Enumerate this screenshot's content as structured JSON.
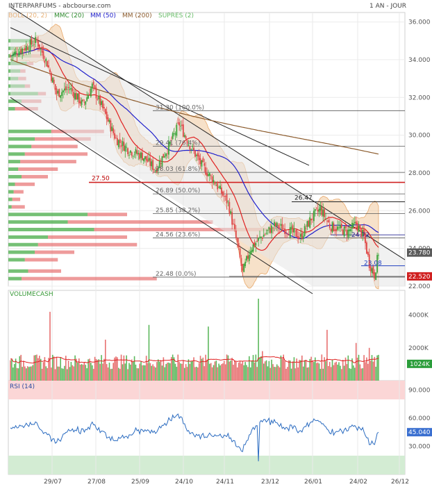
{
  "header": {
    "title": "INTERPARFUMS - abcbourse.com",
    "period": "1 AN - JOUR"
  },
  "legend": [
    {
      "label": "BOLL (20, 2)",
      "color": "#e8b27a"
    },
    {
      "label": "MMC (20)",
      "color": "#2e8b2e"
    },
    {
      "label": "MM (50)",
      "color": "#2020cc"
    },
    {
      "label": "MM (200)",
      "color": "#8b5a2b"
    },
    {
      "label": "SUPRES (2)",
      "color": "#66bb66"
    }
  ],
  "colors": {
    "up": "#3aa53a",
    "down": "#e04848",
    "boll": "#f1c89c",
    "mm20": "#e02020",
    "mm50": "#2020cc",
    "mm200": "#8b5a2b",
    "vol_up": "#5db85d",
    "vol_down": "#e77070",
    "last_badge": "#5a5a5a",
    "vol_badge": "#2a9d3a",
    "rsi_badge": "#3a6fd0",
    "support_badge": "#d02020"
  },
  "chart_data": [
    {
      "type": "candlestick",
      "name": "price",
      "ylim": [
        22,
        36.5
      ],
      "yticks": [
        22,
        24,
        26,
        28,
        30,
        32,
        34,
        36
      ],
      "ytick_labels": [
        "22.000",
        "24.000",
        "26.000",
        "28.000",
        "30.000",
        "32.000",
        "34.000",
        "36.000"
      ],
      "x_labels": [
        "29/07",
        "27/08",
        "25/09",
        "24/10",
        "24/11",
        "23/12",
        "26/01",
        "24/02",
        "26/12"
      ],
      "last_price": "23.780",
      "fib_levels": [
        {
          "value": 31.3,
          "label": "31.30 (100.0%)"
        },
        {
          "value": 29.41,
          "label": "29.41 (76.4%)"
        },
        {
          "value": 28.03,
          "label": "28.03 (61.8%)"
        },
        {
          "value": 26.89,
          "label": "26.89 (50.0%)"
        },
        {
          "value": 25.85,
          "label": "25.85 (38.2%)"
        },
        {
          "value": 24.56,
          "label": "24.56 (23.6%)"
        },
        {
          "value": 22.48,
          "label": "22.48 (0.0%)"
        }
      ],
      "support_resistance": [
        {
          "value": 27.5,
          "label": "27.50",
          "color": "#d02020"
        },
        {
          "value": 26.47,
          "label": "26.47",
          "color": "#222222"
        },
        {
          "value": 24.72,
          "label": "24.72",
          "color": "#4040a0"
        },
        {
          "value": 23.08,
          "label": "23.08",
          "color": "#2040c0"
        },
        {
          "value": 22.52,
          "label": "22.520",
          "color": "#d02020"
        }
      ],
      "volume_profile": [
        {
          "price": 35.0,
          "up": 40,
          "down": 10
        },
        {
          "price": 34.6,
          "up": 30,
          "down": 15
        },
        {
          "price": 34.2,
          "up": 35,
          "down": 20
        },
        {
          "price": 33.8,
          "up": 28,
          "down": 10
        },
        {
          "price": 33.4,
          "up": 18,
          "down": 8
        },
        {
          "price": 33.0,
          "up": 15,
          "down": 12
        },
        {
          "price": 32.6,
          "up": 25,
          "down": 8
        },
        {
          "price": 32.2,
          "up": 45,
          "down": 12
        },
        {
          "price": 31.8,
          "up": 20,
          "down": 30
        },
        {
          "price": 31.4,
          "up": 10,
          "down": 35
        },
        {
          "price": 30.2,
          "up": 65,
          "down": 80
        },
        {
          "price": 29.8,
          "up": 40,
          "down": 85
        },
        {
          "price": 29.4,
          "up": 35,
          "down": 70
        },
        {
          "price": 29.0,
          "up": 25,
          "down": 95
        },
        {
          "price": 28.6,
          "up": 18,
          "down": 85
        },
        {
          "price": 28.2,
          "up": 15,
          "down": 60
        },
        {
          "price": 27.8,
          "up": 20,
          "down": 40
        },
        {
          "price": 27.4,
          "up": 10,
          "down": 30
        },
        {
          "price": 27.0,
          "up": 8,
          "down": 15
        },
        {
          "price": 26.6,
          "up": 6,
          "down": 12
        },
        {
          "price": 26.2,
          "up": 5,
          "down": 20
        },
        {
          "price": 25.8,
          "up": 120,
          "down": 60
        },
        {
          "price": 25.4,
          "up": 90,
          "down": 220
        },
        {
          "price": 25.0,
          "up": 130,
          "down": 280
        },
        {
          "price": 24.6,
          "up": 60,
          "down": 120
        },
        {
          "price": 24.2,
          "up": 45,
          "down": 150
        },
        {
          "price": 23.8,
          "up": 40,
          "down": 60
        },
        {
          "price": 23.4,
          "up": 25,
          "down": 50
        },
        {
          "price": 22.8,
          "up": 30,
          "down": 50
        },
        {
          "price": 22.4,
          "up": 20,
          "down": 205
        }
      ]
    },
    {
      "type": "bar",
      "name": "VOLUMECASH",
      "ylim": [
        0,
        5000
      ],
      "ytick_labels": [
        "2000K",
        "4000K"
      ],
      "last_value": "1024K"
    },
    {
      "type": "line",
      "name": "RSI (14)",
      "ylim": [
        0,
        100
      ],
      "ytick_labels": [
        "30.000",
        "60.000",
        "90.000"
      ],
      "last_value": "45.040"
    }
  ],
  "sections": {
    "volume_title": "VOLUMECASH",
    "rsi_title": "RSI (14)"
  }
}
